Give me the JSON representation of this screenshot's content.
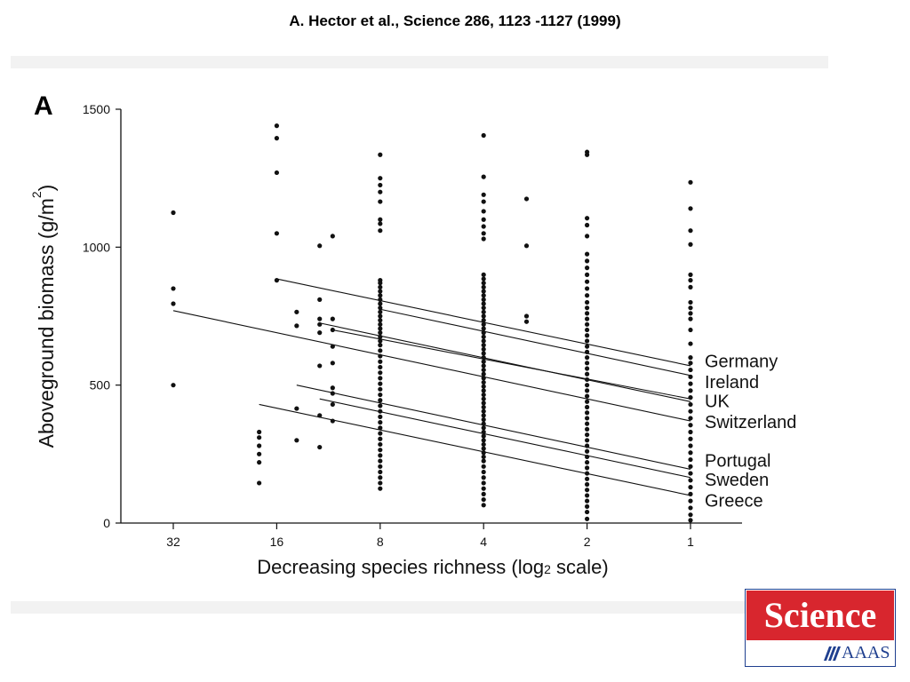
{
  "header": {
    "title": "A.  Hector et al.,  Science  286, 1123 -1127 (1999)"
  },
  "logo": {
    "text": "Science",
    "publisher": "AAAS",
    "brand_red": "#d8262e",
    "brand_blue": "#1f3f8f"
  },
  "chart_data": {
    "type": "scatter",
    "panel_label": "A",
    "xlabel": "Decreasing species richness (log2 scale)",
    "xlabel_main": "Decreasing species richness (log",
    "xlabel_sub": "2",
    "xlabel_end": " scale)",
    "ylabel": "Aboveground biomass (g/m2)",
    "ylabel_main": "Aboveground biomass (g/m",
    "ylabel_sup": "2",
    "ylabel_end": ")",
    "x_scale": "log2, reversed",
    "x_ticks": [
      32,
      16,
      8,
      4,
      2,
      1
    ],
    "x_tick_labels": [
      "32",
      "16",
      "8",
      "4",
      "2",
      "1"
    ],
    "y_ticks": [
      0,
      500,
      1000,
      1500
    ],
    "y_tick_labels": [
      "0",
      "500",
      "1000",
      "1500"
    ],
    "ylim": [
      0,
      1500
    ],
    "xlim": [
      48,
      0.72
    ],
    "grid": false,
    "points": [
      {
        "x": 32,
        "y": 1125
      },
      {
        "x": 32,
        "y": 850
      },
      {
        "x": 32,
        "y": 795
      },
      {
        "x": 32,
        "y": 500
      },
      {
        "x": 16,
        "y": 1440
      },
      {
        "x": 16,
        "y": 1395
      },
      {
        "x": 16,
        "y": 1270
      },
      {
        "x": 16,
        "y": 1050
      },
      {
        "x": 16,
        "y": 880
      },
      {
        "x": 18,
        "y": 330
      },
      {
        "x": 18,
        "y": 310
      },
      {
        "x": 18,
        "y": 280
      },
      {
        "x": 18,
        "y": 250
      },
      {
        "x": 18,
        "y": 220
      },
      {
        "x": 18,
        "y": 145
      },
      {
        "x": 14,
        "y": 765
      },
      {
        "x": 14,
        "y": 715
      },
      {
        "x": 14,
        "y": 415
      },
      {
        "x": 14,
        "y": 300
      },
      {
        "x": 12,
        "y": 1005
      },
      {
        "x": 12,
        "y": 810
      },
      {
        "x": 12,
        "y": 740
      },
      {
        "x": 12,
        "y": 720
      },
      {
        "x": 12,
        "y": 690
      },
      {
        "x": 12,
        "y": 570
      },
      {
        "x": 12,
        "y": 390
      },
      {
        "x": 12,
        "y": 275
      },
      {
        "x": 11,
        "y": 1040
      },
      {
        "x": 11,
        "y": 740
      },
      {
        "x": 11,
        "y": 700
      },
      {
        "x": 11,
        "y": 640
      },
      {
        "x": 11,
        "y": 580
      },
      {
        "x": 11,
        "y": 490
      },
      {
        "x": 11,
        "y": 470
      },
      {
        "x": 11,
        "y": 430
      },
      {
        "x": 11,
        "y": 370
      },
      {
        "x": 8,
        "y": 1335
      },
      {
        "x": 8,
        "y": 1250
      },
      {
        "x": 8,
        "y": 1225
      },
      {
        "x": 8,
        "y": 1200
      },
      {
        "x": 8,
        "y": 1165
      },
      {
        "x": 8,
        "y": 1100
      },
      {
        "x": 8,
        "y": 1085
      },
      {
        "x": 8,
        "y": 1060
      },
      {
        "x": 8,
        "y": 880
      },
      {
        "x": 8,
        "y": 870
      },
      {
        "x": 8,
        "y": 855
      },
      {
        "x": 8,
        "y": 840
      },
      {
        "x": 8,
        "y": 825
      },
      {
        "x": 8,
        "y": 810
      },
      {
        "x": 8,
        "y": 795
      },
      {
        "x": 8,
        "y": 780
      },
      {
        "x": 8,
        "y": 765
      },
      {
        "x": 8,
        "y": 750
      },
      {
        "x": 8,
        "y": 735
      },
      {
        "x": 8,
        "y": 720
      },
      {
        "x": 8,
        "y": 705
      },
      {
        "x": 8,
        "y": 690
      },
      {
        "x": 8,
        "y": 675
      },
      {
        "x": 8,
        "y": 660
      },
      {
        "x": 8,
        "y": 645
      },
      {
        "x": 8,
        "y": 625
      },
      {
        "x": 8,
        "y": 605
      },
      {
        "x": 8,
        "y": 585
      },
      {
        "x": 8,
        "y": 565
      },
      {
        "x": 8,
        "y": 545
      },
      {
        "x": 8,
        "y": 525
      },
      {
        "x": 8,
        "y": 505
      },
      {
        "x": 8,
        "y": 485
      },
      {
        "x": 8,
        "y": 465
      },
      {
        "x": 8,
        "y": 445
      },
      {
        "x": 8,
        "y": 425
      },
      {
        "x": 8,
        "y": 405
      },
      {
        "x": 8,
        "y": 385
      },
      {
        "x": 8,
        "y": 365
      },
      {
        "x": 8,
        "y": 345
      },
      {
        "x": 8,
        "y": 325
      },
      {
        "x": 8,
        "y": 305
      },
      {
        "x": 8,
        "y": 285
      },
      {
        "x": 8,
        "y": 265
      },
      {
        "x": 8,
        "y": 245
      },
      {
        "x": 8,
        "y": 225
      },
      {
        "x": 8,
        "y": 205
      },
      {
        "x": 8,
        "y": 185
      },
      {
        "x": 8,
        "y": 165
      },
      {
        "x": 8,
        "y": 145
      },
      {
        "x": 8,
        "y": 125
      },
      {
        "x": 4,
        "y": 1405
      },
      {
        "x": 4,
        "y": 1255
      },
      {
        "x": 4,
        "y": 1190
      },
      {
        "x": 4,
        "y": 1165
      },
      {
        "x": 4,
        "y": 1130
      },
      {
        "x": 4,
        "y": 1100
      },
      {
        "x": 4,
        "y": 1075
      },
      {
        "x": 4,
        "y": 1050
      },
      {
        "x": 4,
        "y": 1030
      },
      {
        "x": 4,
        "y": 900
      },
      {
        "x": 4,
        "y": 885
      },
      {
        "x": 4,
        "y": 870
      },
      {
        "x": 4,
        "y": 855
      },
      {
        "x": 4,
        "y": 840
      },
      {
        "x": 4,
        "y": 825
      },
      {
        "x": 4,
        "y": 810
      },
      {
        "x": 4,
        "y": 795
      },
      {
        "x": 4,
        "y": 780
      },
      {
        "x": 4,
        "y": 765
      },
      {
        "x": 4,
        "y": 750
      },
      {
        "x": 4,
        "y": 735
      },
      {
        "x": 4,
        "y": 720
      },
      {
        "x": 4,
        "y": 705
      },
      {
        "x": 4,
        "y": 690
      },
      {
        "x": 4,
        "y": 675
      },
      {
        "x": 4,
        "y": 660
      },
      {
        "x": 4,
        "y": 645
      },
      {
        "x": 4,
        "y": 630
      },
      {
        "x": 4,
        "y": 615
      },
      {
        "x": 4,
        "y": 600
      },
      {
        "x": 4,
        "y": 585
      },
      {
        "x": 4,
        "y": 570
      },
      {
        "x": 4,
        "y": 555
      },
      {
        "x": 4,
        "y": 540
      },
      {
        "x": 4,
        "y": 525
      },
      {
        "x": 4,
        "y": 510
      },
      {
        "x": 4,
        "y": 495
      },
      {
        "x": 4,
        "y": 480
      },
      {
        "x": 4,
        "y": 465
      },
      {
        "x": 4,
        "y": 450
      },
      {
        "x": 4,
        "y": 435
      },
      {
        "x": 4,
        "y": 420
      },
      {
        "x": 4,
        "y": 405
      },
      {
        "x": 4,
        "y": 390
      },
      {
        "x": 4,
        "y": 375
      },
      {
        "x": 4,
        "y": 360
      },
      {
        "x": 4,
        "y": 345
      },
      {
        "x": 4,
        "y": 330
      },
      {
        "x": 4,
        "y": 315
      },
      {
        "x": 4,
        "y": 300
      },
      {
        "x": 4,
        "y": 285
      },
      {
        "x": 4,
        "y": 270
      },
      {
        "x": 4,
        "y": 255
      },
      {
        "x": 4,
        "y": 240
      },
      {
        "x": 4,
        "y": 225
      },
      {
        "x": 4,
        "y": 205
      },
      {
        "x": 4,
        "y": 185
      },
      {
        "x": 4,
        "y": 165
      },
      {
        "x": 4,
        "y": 145
      },
      {
        "x": 4,
        "y": 125
      },
      {
        "x": 4,
        "y": 105
      },
      {
        "x": 4,
        "y": 85
      },
      {
        "x": 4,
        "y": 65
      },
      {
        "x": 3,
        "y": 1175
      },
      {
        "x": 3,
        "y": 1005
      },
      {
        "x": 3,
        "y": 750
      },
      {
        "x": 3,
        "y": 730
      },
      {
        "x": 2,
        "y": 1345
      },
      {
        "x": 2,
        "y": 1335
      },
      {
        "x": 2,
        "y": 1105
      },
      {
        "x": 2,
        "y": 1080
      },
      {
        "x": 2,
        "y": 1040
      },
      {
        "x": 2,
        "y": 975
      },
      {
        "x": 2,
        "y": 950
      },
      {
        "x": 2,
        "y": 925
      },
      {
        "x": 2,
        "y": 900
      },
      {
        "x": 2,
        "y": 875
      },
      {
        "x": 2,
        "y": 850
      },
      {
        "x": 2,
        "y": 825
      },
      {
        "x": 2,
        "y": 800
      },
      {
        "x": 2,
        "y": 780
      },
      {
        "x": 2,
        "y": 760
      },
      {
        "x": 2,
        "y": 740
      },
      {
        "x": 2,
        "y": 720
      },
      {
        "x": 2,
        "y": 700
      },
      {
        "x": 2,
        "y": 680
      },
      {
        "x": 2,
        "y": 660
      },
      {
        "x": 2,
        "y": 640
      },
      {
        "x": 2,
        "y": 620
      },
      {
        "x": 2,
        "y": 600
      },
      {
        "x": 2,
        "y": 580
      },
      {
        "x": 2,
        "y": 560
      },
      {
        "x": 2,
        "y": 540
      },
      {
        "x": 2,
        "y": 520
      },
      {
        "x": 2,
        "y": 500
      },
      {
        "x": 2,
        "y": 480
      },
      {
        "x": 2,
        "y": 460
      },
      {
        "x": 2,
        "y": 440
      },
      {
        "x": 2,
        "y": 420
      },
      {
        "x": 2,
        "y": 400
      },
      {
        "x": 2,
        "y": 380
      },
      {
        "x": 2,
        "y": 360
      },
      {
        "x": 2,
        "y": 340
      },
      {
        "x": 2,
        "y": 320
      },
      {
        "x": 2,
        "y": 300
      },
      {
        "x": 2,
        "y": 280
      },
      {
        "x": 2,
        "y": 260
      },
      {
        "x": 2,
        "y": 240
      },
      {
        "x": 2,
        "y": 220
      },
      {
        "x": 2,
        "y": 200
      },
      {
        "x": 2,
        "y": 180
      },
      {
        "x": 2,
        "y": 160
      },
      {
        "x": 2,
        "y": 140
      },
      {
        "x": 2,
        "y": 120
      },
      {
        "x": 2,
        "y": 100
      },
      {
        "x": 2,
        "y": 80
      },
      {
        "x": 2,
        "y": 60
      },
      {
        "x": 2,
        "y": 40
      },
      {
        "x": 2,
        "y": 15
      },
      {
        "x": 1,
        "y": 1235
      },
      {
        "x": 1,
        "y": 1140
      },
      {
        "x": 1,
        "y": 1060
      },
      {
        "x": 1,
        "y": 1010
      },
      {
        "x": 1,
        "y": 900
      },
      {
        "x": 1,
        "y": 880
      },
      {
        "x": 1,
        "y": 855
      },
      {
        "x": 1,
        "y": 800
      },
      {
        "x": 1,
        "y": 780
      },
      {
        "x": 1,
        "y": 760
      },
      {
        "x": 1,
        "y": 740
      },
      {
        "x": 1,
        "y": 700
      },
      {
        "x": 1,
        "y": 650
      },
      {
        "x": 1,
        "y": 600
      },
      {
        "x": 1,
        "y": 580
      },
      {
        "x": 1,
        "y": 555
      },
      {
        "x": 1,
        "y": 530
      },
      {
        "x": 1,
        "y": 505
      },
      {
        "x": 1,
        "y": 480
      },
      {
        "x": 1,
        "y": 455
      },
      {
        "x": 1,
        "y": 430
      },
      {
        "x": 1,
        "y": 405
      },
      {
        "x": 1,
        "y": 380
      },
      {
        "x": 1,
        "y": 355
      },
      {
        "x": 1,
        "y": 330
      },
      {
        "x": 1,
        "y": 305
      },
      {
        "x": 1,
        "y": 280
      },
      {
        "x": 1,
        "y": 255
      },
      {
        "x": 1,
        "y": 230
      },
      {
        "x": 1,
        "y": 205
      },
      {
        "x": 1,
        "y": 180
      },
      {
        "x": 1,
        "y": 155
      },
      {
        "x": 1,
        "y": 130
      },
      {
        "x": 1,
        "y": 105
      },
      {
        "x": 1,
        "y": 80
      },
      {
        "x": 1,
        "y": 55
      },
      {
        "x": 1,
        "y": 30
      },
      {
        "x": 1,
        "y": 10
      }
    ],
    "series": [
      {
        "name": "Germany",
        "x": [
          16,
          1
        ],
        "y": [
          885,
          570
        ]
      },
      {
        "name": "Ireland",
        "x": [
          8,
          1
        ],
        "y": [
          775,
          535
        ]
      },
      {
        "name": "UK",
        "x": [
          12,
          1
        ],
        "y": [
          725,
          440
        ]
      },
      {
        "name": "UK",
        "x": [
          11,
          1
        ],
        "y": [
          700,
          450
        ]
      },
      {
        "name": "Switzerland",
        "x": [
          32,
          1
        ],
        "y": [
          770,
          370
        ]
      },
      {
        "name": "Portugal",
        "x": [
          14,
          1
        ],
        "y": [
          500,
          195
        ]
      },
      {
        "name": "Sweden",
        "x": [
          12,
          1
        ],
        "y": [
          450,
          165
        ]
      },
      {
        "name": "Greece",
        "x": [
          18,
          1
        ],
        "y": [
          430,
          100
        ]
      }
    ],
    "legend_labels": [
      {
        "name": "Germany",
        "y": 565
      },
      {
        "name": "Ireland",
        "y": 490
      },
      {
        "name": "UK",
        "y": 420
      },
      {
        "name": "Switzerland",
        "y": 345
      },
      {
        "name": "Portugal",
        "y": 205
      },
      {
        "name": "Sweden",
        "y": 135
      },
      {
        "name": "Greece",
        "y": 60
      }
    ]
  }
}
